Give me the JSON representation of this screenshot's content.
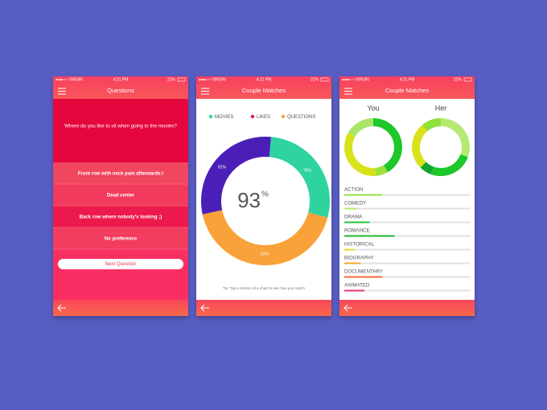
{
  "status_bar": {
    "carrier": "●●●○○ VIRGIN",
    "time": "4:21 PM",
    "battery": "22%"
  },
  "screens": [
    {
      "title": "Questions",
      "question": "Where do you like to sit when going to the movies?",
      "options": [
        "Front row with neck pain afterwards:/",
        "Dead center",
        "Back row where nobody's looking ;)",
        "No preference"
      ],
      "button": "Next Question"
    },
    {
      "title": "Couple Matches",
      "legend": [
        {
          "name": "MOVIES",
          "color": "#2fd3a0"
        },
        {
          "name": "LIKES",
          "color": "#e8123d"
        },
        {
          "name": "QUESTIONS",
          "color": "#f9a23a"
        }
      ],
      "segment_labels": [
        "76%",
        "53%",
        "62%"
      ],
      "score": "93",
      "score_unit": "%",
      "tip": "Tip: Tap a section of a chart to see how you match"
    },
    {
      "title": "Couple Matches",
      "people": [
        "You",
        "Her"
      ],
      "genres": [
        {
          "name": "ACTION",
          "value": 30,
          "color": "#8fe03c"
        },
        {
          "name": "COMEDY",
          "value": 10,
          "color": "#b6ec6a"
        },
        {
          "name": "DRAMA",
          "value": 20,
          "color": "#22c43a"
        },
        {
          "name": "ROMANCE",
          "value": 40,
          "color": "#1fb52e"
        },
        {
          "name": "HISTORICAL",
          "value": 8,
          "color": "#e0e020"
        },
        {
          "name": "BIOGRAPHY",
          "value": 13,
          "color": "#f5a623"
        },
        {
          "name": "DOCUMENTARY",
          "value": 30,
          "color": "#f26a3b"
        },
        {
          "name": "ANIMATED",
          "value": 16,
          "color": "#ee2f77"
        }
      ]
    }
  ]
}
